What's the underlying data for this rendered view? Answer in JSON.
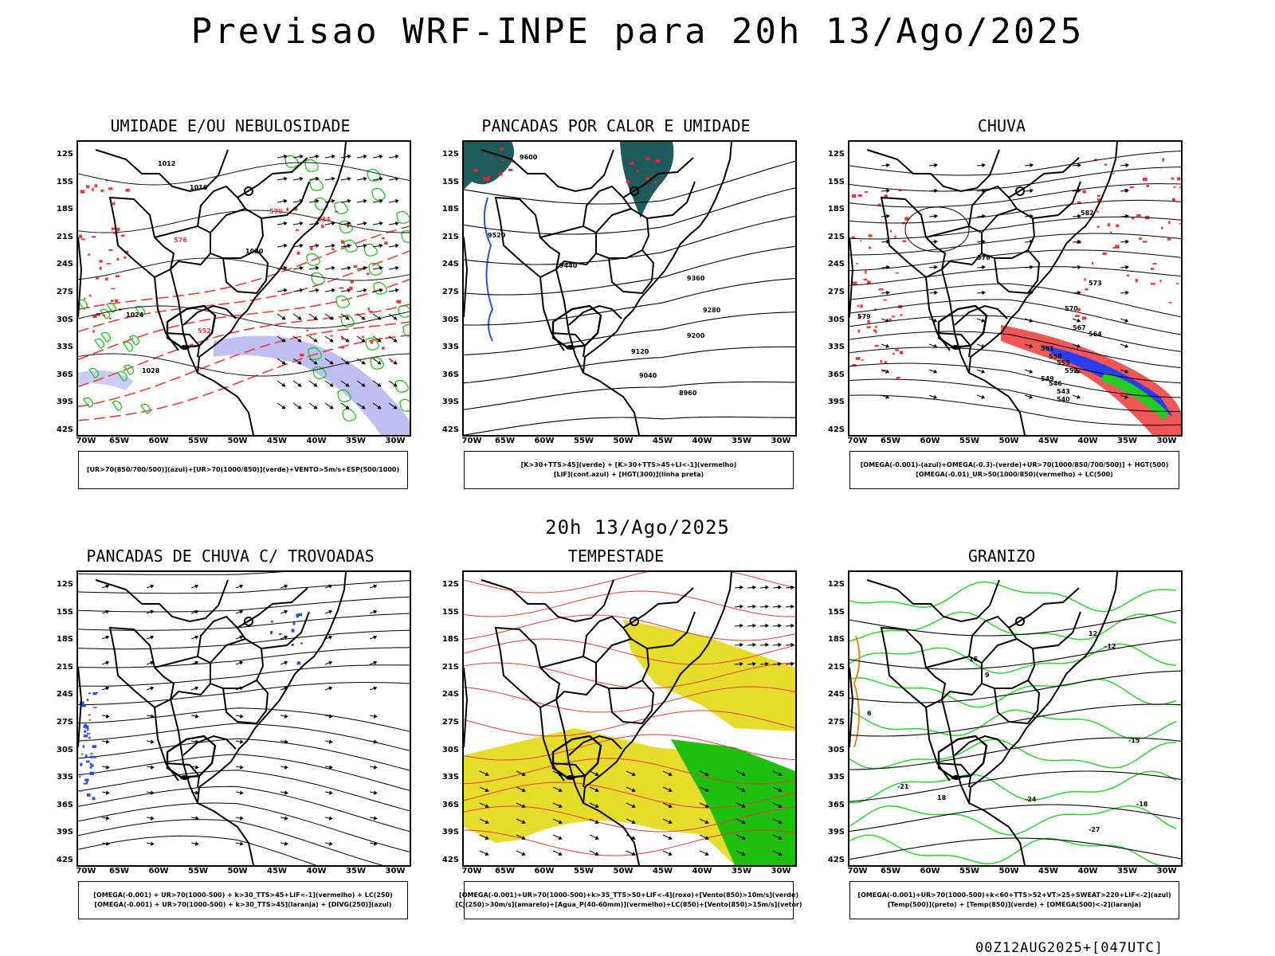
{
  "title": "Previsao WRF-INPE  para 20h 13/Ago/2025",
  "mid_date": "20h 13/Ago/2025",
  "footer": "00Z12AUG2025+[047UTC]",
  "lat_ticks": [
    "12S",
    "15S",
    "18S",
    "21S",
    "24S",
    "27S",
    "30S",
    "33S",
    "36S",
    "39S",
    "42S"
  ],
  "lon_ticks": [
    "70W",
    "65W",
    "60W",
    "55W",
    "50W",
    "45W",
    "40W",
    "35W",
    "30W"
  ],
  "panels": [
    {
      "id": "umidade",
      "title": "UMIDADE E/OU NEBULOSIDADE",
      "legend": [
        "[UR>70(850/700/500)](azul)+[UR>70(1000/850)](verde)+VENTO>5m/s+ESP(500/1000)"
      ],
      "contour_labels": [
        "1012",
        "1016",
        "1020",
        "1024",
        "1028"
      ],
      "thickness_labels": [
        "552",
        "570",
        "576",
        "584"
      ],
      "colors": {
        "blue": "#a9aaf0",
        "green": "#22c21e",
        "red": "#ef3a3a"
      }
    },
    {
      "id": "pancadas-calor",
      "title": "PANCADAS POR CALOR E UMIDADE",
      "legend": [
        "[K>30+TTS>45](verde) + [K>30+TTS>45+LI<-1](vermelho)",
        "[LIF](cont.azul) + [HGT(300)](linha preta)"
      ],
      "contour_labels": [
        "9600",
        "9520",
        "9440",
        "9360",
        "9280",
        "9200",
        "9120",
        "9040",
        "8960"
      ],
      "colors": {
        "teal": "#1e5b5b",
        "blue": "#2a4fe8"
      }
    },
    {
      "id": "chuva",
      "title": "CHUVA",
      "legend": [
        "[OMEGA(-0.001)-(azul)+OMEGA(-0.3)-(verde)+UR>70(1000/850/700/500)] + HGT(500)",
        "[OMEGA(-0.01)_UR>50(1000/850)(vermelho) + LC(500)"
      ],
      "contour_labels": [
        "582",
        "579",
        "576",
        "573",
        "570",
        "567",
        "564",
        "561",
        "558",
        "555",
        "552",
        "549",
        "546",
        "543",
        "540"
      ],
      "colors": {
        "red": "#ef3a3a",
        "blue": "#2a3ef0",
        "green": "#22cc22"
      }
    },
    {
      "id": "trovoadas",
      "title": "PANCADAS DE CHUVA C/ TROVOADAS",
      "legend": [
        "[OMEGA(-0.001) + UR>70(1000-500) + k>30_TTS>45+LIF<-1](vermelho) + LC(250)",
        "[OMEGA(-0.001) + UR>70(1000-500) + k>30_TTS>45](laranja) + [DIVG(250)](azul)"
      ],
      "colors": {
        "blue": "#2a4fe8"
      }
    },
    {
      "id": "tempestade",
      "title": "TEMPESTADE",
      "legend": [
        "[OMEGA(-0.001)+UR>70(1000-500)+k>35_TTS>50+LIF<-4](roxo)+[Vento(850)>10m/s](verde)",
        "[CJ(250)>30m/s](amarelo)+[Agua_P(40-60mm)](vermelho)+LC(850)+[Vento(850)>15m/s](vetor)"
      ],
      "colors": {
        "yellow": "#e5dc2c",
        "green": "#1fbf10",
        "red": "#e83a3a"
      }
    },
    {
      "id": "granizo",
      "title": "GRANIZO",
      "legend": [
        "[OMEGA(-0.001)+UR>70(1000-500)+k<60+TTS>52+VT>25+SWEAT>220+LIF<-2](azul)",
        "[Temp(500)](preto) + [Temp(850)](verde) + [OMEGA(500)<-2](laranja)"
      ],
      "contour_labels": [
        "-12",
        "-15",
        "-18",
        "-21",
        "-24",
        "-27",
        "12",
        "15",
        "18",
        "9",
        "6"
      ],
      "colors": {
        "green": "#2bd62b",
        "orange": "#d98a2a"
      }
    }
  ]
}
